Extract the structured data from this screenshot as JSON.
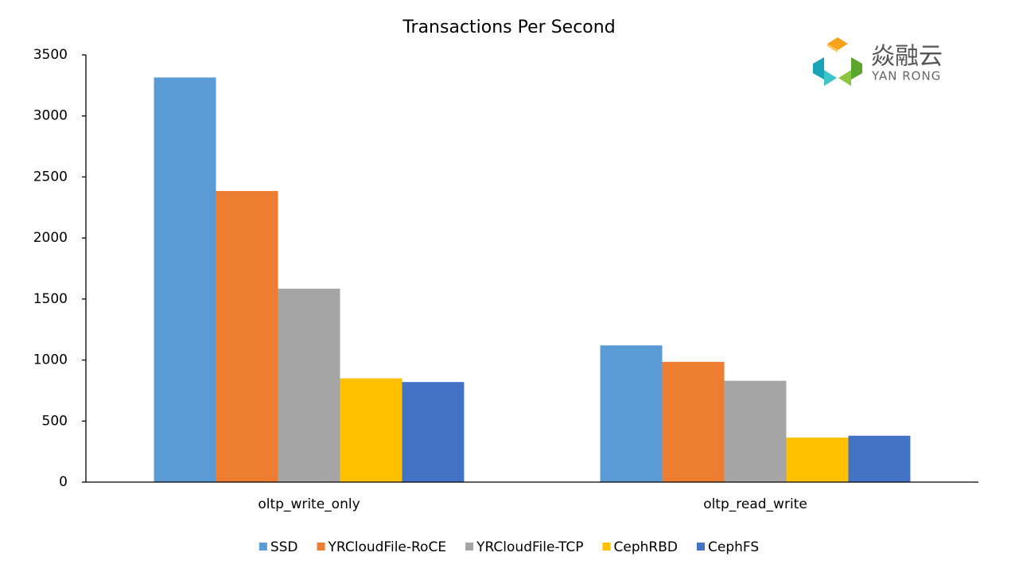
{
  "chart_data": {
    "type": "bar",
    "title": "Transactions Per Second",
    "annotations": [
      "焱融云",
      "YAN RONG"
    ],
    "categories": [
      "oltp_write_only",
      "oltp_read_write"
    ],
    "series": [
      {
        "name": "SSD",
        "color": "#5b9bd5",
        "values": [
          3315,
          1120
        ]
      },
      {
        "name": "YRCloudFile-RoCE",
        "color": "#ed7d31",
        "values": [
          2385,
          985
        ]
      },
      {
        "name": "YRCloudFile-TCP",
        "color": "#a5a5a5",
        "values": [
          1585,
          830
        ]
      },
      {
        "name": "CephRBD",
        "color": "#ffc000",
        "values": [
          850,
          365
        ]
      },
      {
        "name": "CephFS",
        "color": "#4472c4",
        "values": [
          820,
          380
        ]
      }
    ],
    "ylim": [
      0,
      3500
    ],
    "yticks": [
      0,
      500,
      1000,
      1500,
      2000,
      2500,
      3000,
      3500
    ],
    "grid": false,
    "legend": "bottom"
  }
}
